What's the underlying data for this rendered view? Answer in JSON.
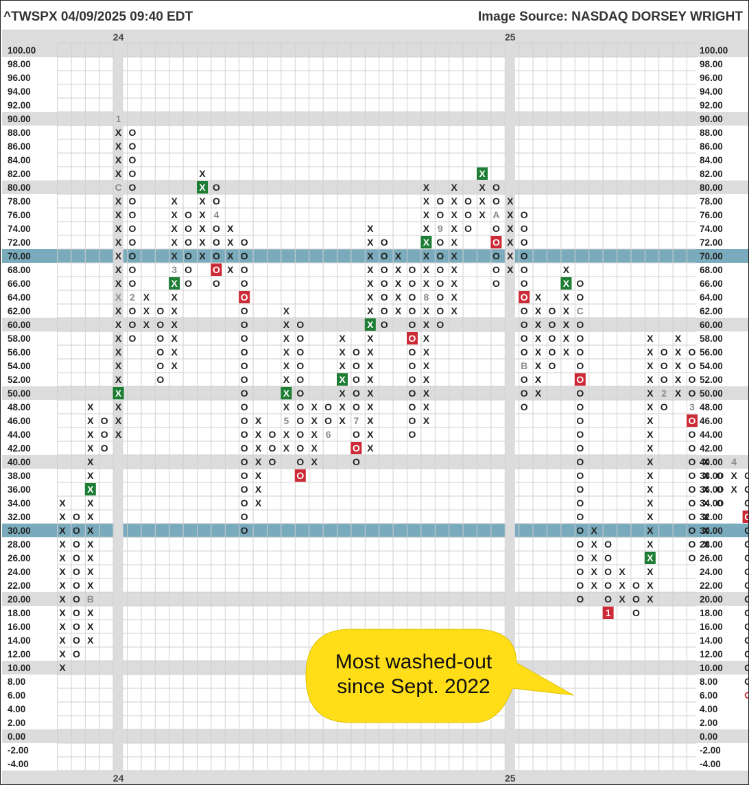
{
  "header": {
    "title": "^TWSPX 04/09/2025 09:40 EDT",
    "source": "Image Source: NASDAQ DORSEY WRIGHT"
  },
  "callout": {
    "line1": "Most washed-out",
    "line2": "since Sept. 2022"
  },
  "colors": {
    "x_green": "#1e7d34",
    "o_red": "#cc2a36",
    "band_blue": "#7aabbd",
    "band_gray": "#dcdcdc",
    "grid": "#cfcfcf",
    "callout": "#ffde17",
    "month_marker": "#8a8a8a"
  },
  "chart_data": {
    "type": "point-and-figure",
    "y_range": [
      -4,
      100
    ],
    "box_size": 2,
    "highlight_levels": [
      30,
      70
    ],
    "year_labels": [
      {
        "label": "24",
        "column": 4
      },
      {
        "label": "25",
        "column": 32
      }
    ],
    "columns": [
      {
        "type": "X",
        "low": 10,
        "high": 34,
        "markers": []
      },
      {
        "type": "O",
        "low": 12,
        "high": 32,
        "markers": []
      },
      {
        "type": "X",
        "low": 14,
        "high": 48,
        "markers": [
          {
            "level": 20,
            "label": "B"
          },
          {
            "level": 36,
            "label": "X",
            "box": true
          }
        ]
      },
      {
        "type": "O",
        "low": 42,
        "high": 46,
        "markers": []
      },
      {
        "type": "X",
        "low": 44,
        "high": 90,
        "markers": [
          {
            "level": 50,
            "label": "X",
            "box": true
          },
          {
            "level": 64,
            "label": "X",
            "box": false
          },
          {
            "level": 80,
            "label": "C"
          },
          {
            "level": 90,
            "label": "1"
          }
        ]
      },
      {
        "type": "O",
        "low": 58,
        "high": 88,
        "markers": [
          {
            "level": 64,
            "label": "2"
          }
        ]
      },
      {
        "type": "X",
        "low": 60,
        "high": 64,
        "markers": []
      },
      {
        "type": "O",
        "low": 52,
        "high": 62,
        "markers": []
      },
      {
        "type": "X",
        "low": 54,
        "high": 78,
        "markers": [
          {
            "level": 66,
            "label": "X",
            "box": true
          },
          {
            "level": 68,
            "label": "3"
          }
        ]
      },
      {
        "type": "O",
        "low": 66,
        "high": 76,
        "markers": []
      },
      {
        "type": "X",
        "low": 70,
        "high": 82,
        "markers": [
          {
            "level": 80,
            "label": "X",
            "box": true
          }
        ]
      },
      {
        "type": "O",
        "low": 66,
        "high": 80,
        "markers": [
          {
            "level": 68,
            "label": "O",
            "box": true
          },
          {
            "level": 76,
            "label": "4"
          }
        ]
      },
      {
        "type": "X",
        "low": 68,
        "high": 74,
        "markers": []
      },
      {
        "type": "O",
        "low": 30,
        "high": 72,
        "markers": [
          {
            "level": 64,
            "label": "O",
            "box": true
          }
        ]
      },
      {
        "type": "X",
        "low": 34,
        "high": 46,
        "markers": []
      },
      {
        "type": "O",
        "low": 40,
        "high": 44,
        "markers": []
      },
      {
        "type": "X",
        "low": 42,
        "high": 62,
        "markers": [
          {
            "level": 46,
            "label": "5"
          },
          {
            "level": 50,
            "label": "X",
            "box": true
          }
        ]
      },
      {
        "type": "O",
        "low": 38,
        "high": 60,
        "markers": [
          {
            "level": 38,
            "label": "O",
            "box": true
          }
        ]
      },
      {
        "type": "X",
        "low": 40,
        "high": 48,
        "markers": []
      },
      {
        "type": "O",
        "low": 44,
        "high": 48,
        "markers": [
          {
            "level": 44,
            "label": "6"
          }
        ]
      },
      {
        "type": "X",
        "low": 46,
        "high": 58,
        "markers": [
          {
            "level": 52,
            "label": "X",
            "box": true
          }
        ]
      },
      {
        "type": "O",
        "low": 40,
        "high": 56,
        "markers": [
          {
            "level": 42,
            "label": "O",
            "box": true
          },
          {
            "level": 46,
            "label": "7"
          }
        ]
      },
      {
        "type": "X",
        "low": 42,
        "high": 74,
        "markers": [
          {
            "level": 60,
            "label": "X",
            "box": true
          }
        ]
      },
      {
        "type": "O",
        "low": 60,
        "high": 72,
        "markers": []
      },
      {
        "type": "X",
        "low": 62,
        "high": 70,
        "markers": []
      },
      {
        "type": "O",
        "low": 44,
        "high": 68,
        "markers": [
          {
            "level": 58,
            "label": "O",
            "box": true
          }
        ]
      },
      {
        "type": "X",
        "low": 46,
        "high": 80,
        "markers": [
          {
            "level": 64,
            "label": "8"
          },
          {
            "level": 72,
            "label": "X",
            "box": true
          }
        ]
      },
      {
        "type": "O",
        "low": 60,
        "high": 78,
        "markers": [
          {
            "level": 74,
            "label": "9"
          }
        ]
      },
      {
        "type": "X",
        "low": 62,
        "high": 80,
        "markers": []
      },
      {
        "type": "O",
        "low": 74,
        "high": 78,
        "markers": []
      },
      {
        "type": "X",
        "low": 76,
        "high": 82,
        "markers": [
          {
            "level": 82,
            "label": "X",
            "box": true
          }
        ]
      },
      {
        "type": "O",
        "low": 66,
        "high": 80,
        "markers": [
          {
            "level": 72,
            "label": "O",
            "box": true
          },
          {
            "level": 76,
            "label": "A"
          }
        ]
      },
      {
        "type": "X",
        "low": 68,
        "high": 78,
        "markers": []
      },
      {
        "type": "O",
        "low": 48,
        "high": 76,
        "markers": [
          {
            "level": 54,
            "label": "B"
          },
          {
            "level": 64,
            "label": "O",
            "box": true
          }
        ]
      },
      {
        "type": "X",
        "low": 50,
        "high": 64,
        "markers": []
      },
      {
        "type": "O",
        "low": 54,
        "high": 62,
        "markers": []
      },
      {
        "type": "X",
        "low": 56,
        "high": 68,
        "markers": [
          {
            "level": 66,
            "label": "X",
            "box": true
          }
        ]
      },
      {
        "type": "O",
        "low": 20,
        "high": 66,
        "markers": [
          {
            "level": 52,
            "label": "O",
            "box": true
          },
          {
            "level": 62,
            "label": "C"
          }
        ]
      },
      {
        "type": "X",
        "low": 22,
        "high": 30,
        "markers": []
      },
      {
        "type": "O",
        "low": 18,
        "high": 28,
        "markers": [
          {
            "level": 18,
            "label": "1",
            "box": true
          }
        ]
      },
      {
        "type": "X",
        "low": 20,
        "high": 24,
        "markers": []
      },
      {
        "type": "O",
        "low": 18,
        "high": 22,
        "markers": []
      },
      {
        "type": "X",
        "low": 20,
        "high": 58,
        "markers": [
          {
            "level": 26,
            "label": "X",
            "box": true
          }
        ]
      },
      {
        "type": "O",
        "low": 48,
        "high": 56,
        "markers": [
          {
            "level": 50,
            "label": "2"
          }
        ]
      },
      {
        "type": "X",
        "low": 50,
        "high": 58,
        "markers": []
      },
      {
        "type": "O",
        "low": 26,
        "high": 56,
        "markers": [
          {
            "level": 46,
            "label": "O",
            "box": true
          },
          {
            "level": 48,
            "label": "3"
          }
        ]
      },
      {
        "type": "X",
        "low": 28,
        "high": 40,
        "markers": []
      },
      {
        "type": "O",
        "low": 34,
        "high": 38,
        "markers": []
      },
      {
        "type": "X",
        "low": 36,
        "high": 40,
        "markers": [
          {
            "level": 40,
            "label": "4"
          }
        ]
      },
      {
        "type": "O",
        "low": 6,
        "high": 38,
        "markers": [
          {
            "level": 32,
            "label": "O",
            "box": true
          }
        ]
      }
    ]
  }
}
